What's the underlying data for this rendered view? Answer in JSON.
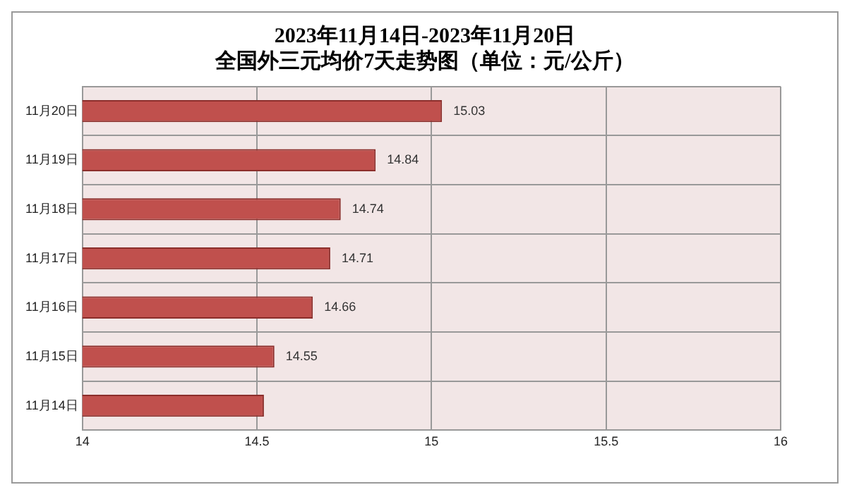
{
  "chart_data": {
    "type": "bar",
    "orientation": "horizontal",
    "title": "2023年11月14日-2023年11月20日",
    "subtitle": "全国外三元均价7天走势图（单位：元/公斤）",
    "categories": [
      "11月20日",
      "11月19日",
      "11月18日",
      "11月17日",
      "11月16日",
      "11月15日",
      "11月14日"
    ],
    "values": [
      15.03,
      14.84,
      14.74,
      14.71,
      14.66,
      14.55,
      14.52
    ],
    "value_labels": [
      "15.03",
      "14.84",
      "14.74",
      "14.71",
      "14.66",
      "14.55",
      null
    ],
    "color": "#c0504d",
    "xlim": [
      14,
      16
    ],
    "xticks": [
      14,
      14.5,
      15,
      15.5,
      16
    ],
    "grid": true,
    "legend": false
  }
}
